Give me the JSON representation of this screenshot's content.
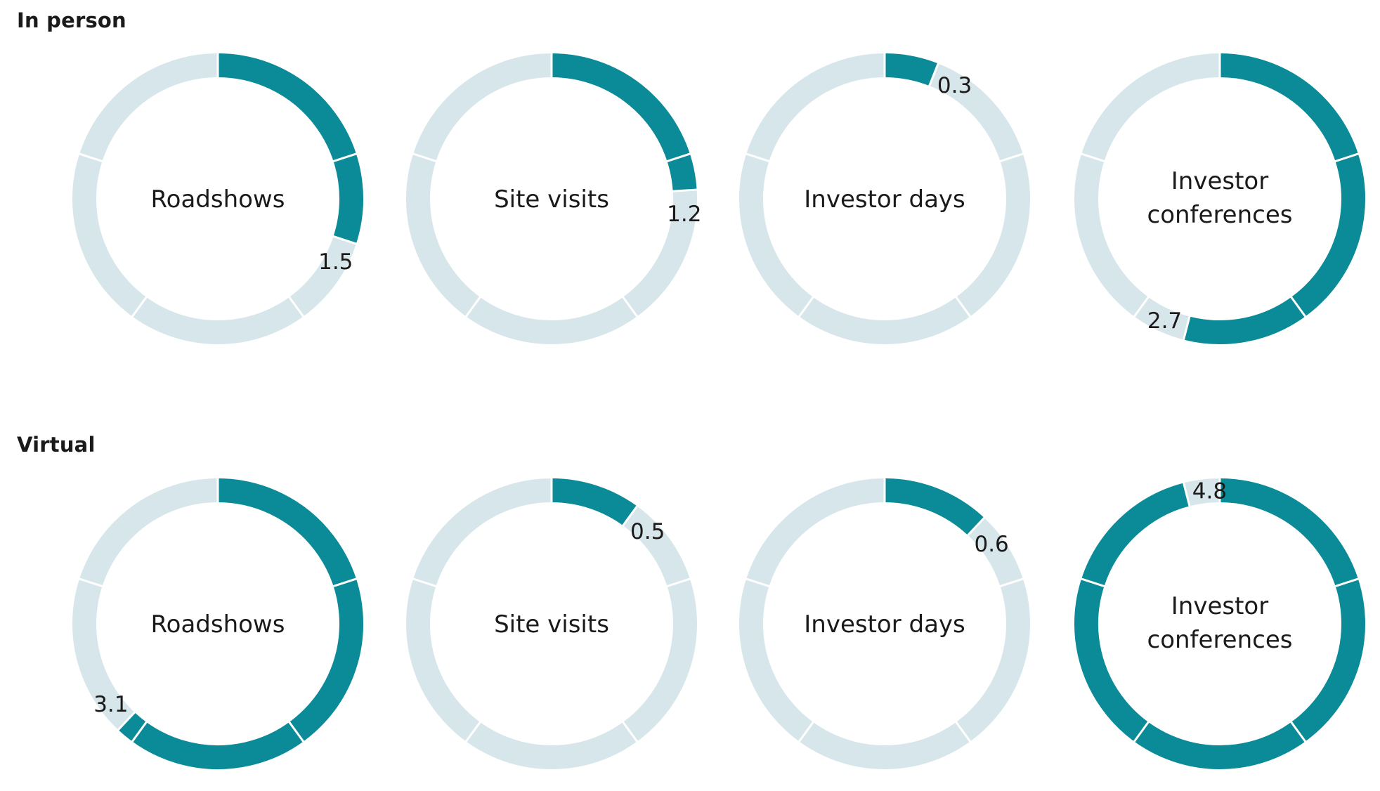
{
  "sections": {
    "in_person": "In person",
    "virtual": "Virtual"
  },
  "colors": {
    "filled": "#0a8b97",
    "track": "#d7e6eb",
    "separator": "#ffffff"
  },
  "chart_data": [
    {
      "type": "donut-group",
      "group": "In person",
      "max": 5,
      "ticks": 5,
      "charts": [
        {
          "label": "Roadshows",
          "value": 1.5
        },
        {
          "label": "Site visits",
          "value": 1.2
        },
        {
          "label": "Investor days",
          "value": 0.3
        },
        {
          "label": "Investor conferences",
          "value": 2.7
        }
      ]
    },
    {
      "type": "donut-group",
      "group": "Virtual",
      "max": 5,
      "ticks": 5,
      "charts": [
        {
          "label": "Roadshows",
          "value": 3.1
        },
        {
          "label": "Site visits",
          "value": 0.5
        },
        {
          "label": "Investor days",
          "value": 0.6
        },
        {
          "label": "Investor conferences",
          "value": 4.8
        }
      ]
    }
  ]
}
